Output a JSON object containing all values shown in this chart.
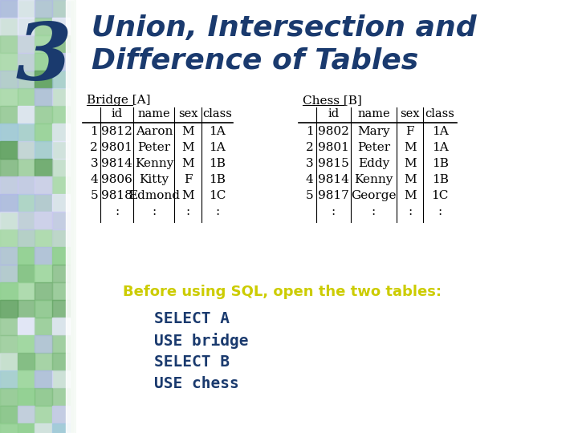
{
  "title_number": "3",
  "title_line1": "Union, Intersection and",
  "title_line2": "Difference of Tables",
  "title_color": "#1a3a6e",
  "title_fontsize": 26,
  "bg_color": "#ffffff",
  "bridge_label": "Bridge [A]",
  "chess_label": "Chess [B]",
  "table_header": [
    "",
    "id",
    "name",
    "sex",
    "class"
  ],
  "bridge_rows": [
    [
      "1",
      "9812",
      "Aaron",
      "M",
      "1A"
    ],
    [
      "2",
      "9801",
      "Peter",
      "M",
      "1A"
    ],
    [
      "3",
      "9814",
      "Kenny",
      "M",
      "1B"
    ],
    [
      "4",
      "9806",
      "Kitty",
      "F",
      "1B"
    ],
    [
      "5",
      "9818",
      "Edmond",
      "M",
      "1C"
    ],
    [
      "",
      ":",
      ":",
      ":",
      ":"
    ]
  ],
  "chess_rows": [
    [
      "1",
      "9802",
      "Mary",
      "F",
      "1A"
    ],
    [
      "2",
      "9801",
      "Peter",
      "M",
      "1A"
    ],
    [
      "3",
      "9815",
      "Eddy",
      "M",
      "1B"
    ],
    [
      "4",
      "9814",
      "Kenny",
      "M",
      "1B"
    ],
    [
      "5",
      "9817",
      "George",
      "M",
      "1C"
    ],
    [
      "",
      ":",
      ":",
      ":",
      ":"
    ]
  ],
  "before_sql_text": "Before using SQL, open the two tables:",
  "before_sql_color": "#cccc00",
  "code_lines": [
    "SELECT A",
    "USE bridge",
    "SELECT B",
    "USE chess"
  ],
  "code_color": "#1a3a6e",
  "tile_colors": [
    "#7fba7f",
    "#a0c8e0",
    "#c8c8f0",
    "#90d090",
    "#d0d0f0",
    "#80c080",
    "#b0b8e8",
    "#e8e8ff",
    "#60a060",
    "#a0d8a0"
  ]
}
